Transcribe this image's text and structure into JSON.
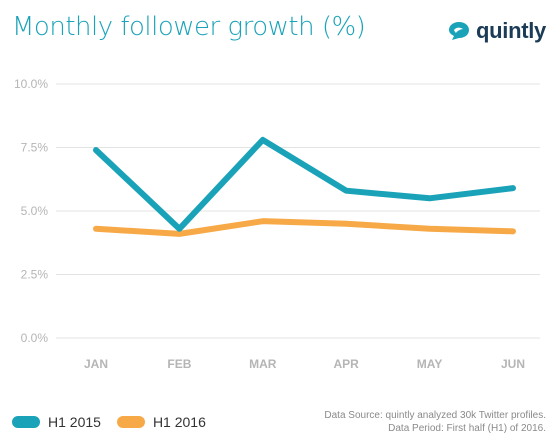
{
  "title": "Monthly follower growth (%)",
  "logo": {
    "text": "quintly",
    "icon": "quintly-bubble-icon"
  },
  "colors": {
    "h1_2015": "#1aa3b8",
    "h1_2016": "#f7a948",
    "grid": "#e3e3e3",
    "ticks": "#b5b5b5"
  },
  "legend": [
    {
      "label": "H1 2015"
    },
    {
      "label": "H1 2016"
    }
  ],
  "source": {
    "line1": "Data Source: quintly analyzed 30k Twitter profiles.",
    "line2": "Data Period: First half (H1) of 2016."
  },
  "chart_data": {
    "type": "line",
    "title": "Monthly follower growth (%)",
    "xlabel": "",
    "ylabel": "",
    "categories": [
      "JAN",
      "FEB",
      "MAR",
      "APR",
      "MAY",
      "JUN"
    ],
    "y_ticks": [
      "0.0%",
      "2.5%",
      "5.0%",
      "7.5%",
      "10.0%"
    ],
    "ylim": [
      0,
      10
    ],
    "grid": true,
    "legend_position": "bottom-left",
    "series": [
      {
        "name": "H1 2015",
        "values": [
          7.4,
          4.3,
          7.8,
          5.8,
          5.5,
          5.9
        ],
        "color": "#1aa3b8"
      },
      {
        "name": "H1 2016",
        "values": [
          4.3,
          4.1,
          4.6,
          4.5,
          4.3,
          4.2
        ],
        "color": "#f7a948"
      }
    ]
  }
}
